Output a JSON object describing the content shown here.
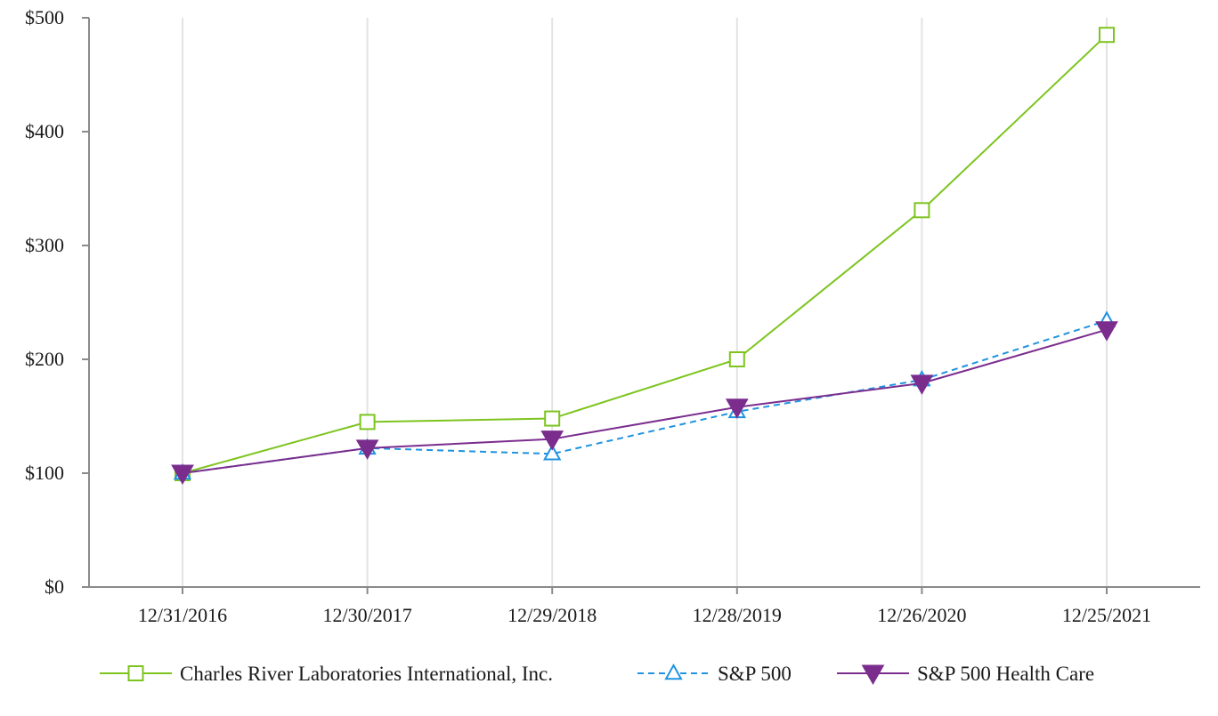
{
  "chart_data": {
    "type": "line",
    "title": "",
    "xlabel": "",
    "ylabel": "",
    "categories": [
      "12/31/2016",
      "12/30/2017",
      "12/29/2018",
      "12/28/2019",
      "12/26/2020",
      "12/25/2021"
    ],
    "ylim": [
      0,
      500
    ],
    "yticks": [
      0,
      100,
      200,
      300,
      400,
      500
    ],
    "ytick_labels": [
      "$0",
      "$100",
      "$200",
      "$300",
      "$400",
      "$500"
    ],
    "grid": "vertical",
    "legend_position": "bottom",
    "series": [
      {
        "name": "Charles River Laboratories International, Inc.",
        "values": [
          100,
          145,
          148,
          200,
          331,
          485
        ],
        "color": "#7dc41f",
        "marker": "square-open",
        "dash": "solid"
      },
      {
        "name": "S&P 500",
        "values": [
          100,
          122,
          117,
          154,
          182,
          234
        ],
        "color": "#1f93e0",
        "marker": "triangle-up-open",
        "dash": "dashed"
      },
      {
        "name": "S&P 500 Health Care",
        "values": [
          100,
          122,
          130,
          158,
          179,
          226
        ],
        "color": "#7b2d8e",
        "marker": "triangle-down-filled",
        "dash": "solid"
      }
    ]
  }
}
